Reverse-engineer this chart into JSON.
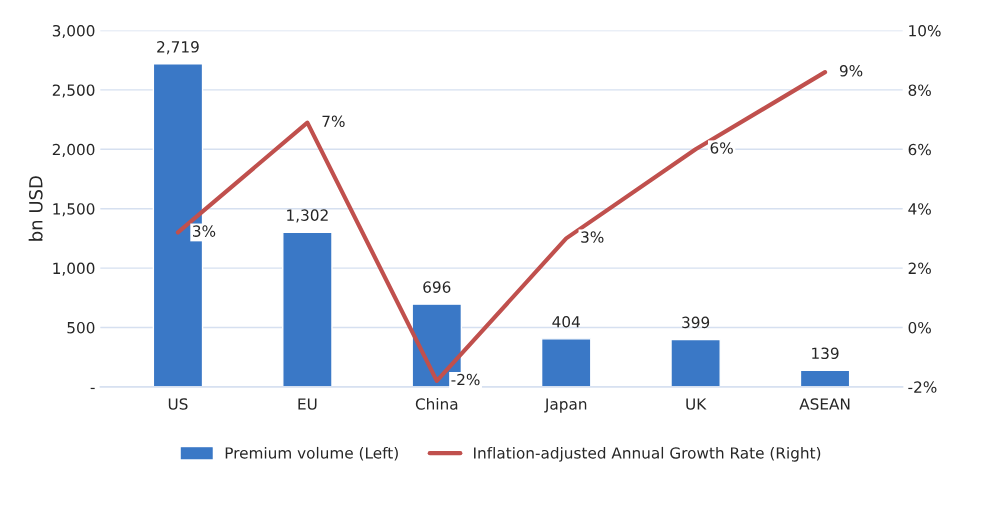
{
  "chart_data": {
    "type": "bar",
    "ylabel": "bn USD",
    "categories": [
      "US",
      "EU",
      "China",
      "Japan",
      "UK",
      "ASEAN"
    ],
    "series": [
      {
        "name": "Premium volume (Left)",
        "color": "#3a78c6",
        "values": [
          2719,
          1302,
          696,
          404,
          399,
          139
        ],
        "value_labels": [
          "2,719",
          "1,302",
          "696",
          "404",
          "399",
          "139"
        ]
      },
      {
        "name": "Inflation-adjusted Annual Growth Rate (Right)",
        "type": "line",
        "axis": "y2",
        "color": "#c0504d",
        "values": [
          3.2,
          6.9,
          -1.8,
          3.0,
          6.0,
          8.6
        ],
        "value_labels": [
          "3%",
          "7%",
          "-2%",
          "3%",
          "6%",
          "9%"
        ]
      }
    ],
    "ylim": [
      0,
      3000
    ],
    "yticks": [
      {
        "value": 0,
        "label": "-"
      },
      500,
      {
        "value": 1000,
        "label": "1,000"
      },
      {
        "value": 1500,
        "label": "1,500"
      },
      {
        "value": 2000,
        "label": "2,000"
      },
      {
        "value": 2500,
        "label": "2,500"
      },
      {
        "value": 3000,
        "label": "3,000"
      }
    ],
    "y2lim": [
      -2,
      10
    ],
    "y2ticks": [
      {
        "value": -2,
        "label": "-2%"
      },
      {
        "value": 0,
        "label": "0%"
      },
      {
        "value": 2,
        "label": "2%"
      },
      {
        "value": 4,
        "label": "4%"
      },
      {
        "value": 6,
        "label": "6%"
      },
      {
        "value": 8,
        "label": "8%"
      },
      {
        "value": 10,
        "label": "10%"
      }
    ],
    "grid": "y",
    "legend": "bottom",
    "marker": "none",
    "line_style": "solid"
  }
}
